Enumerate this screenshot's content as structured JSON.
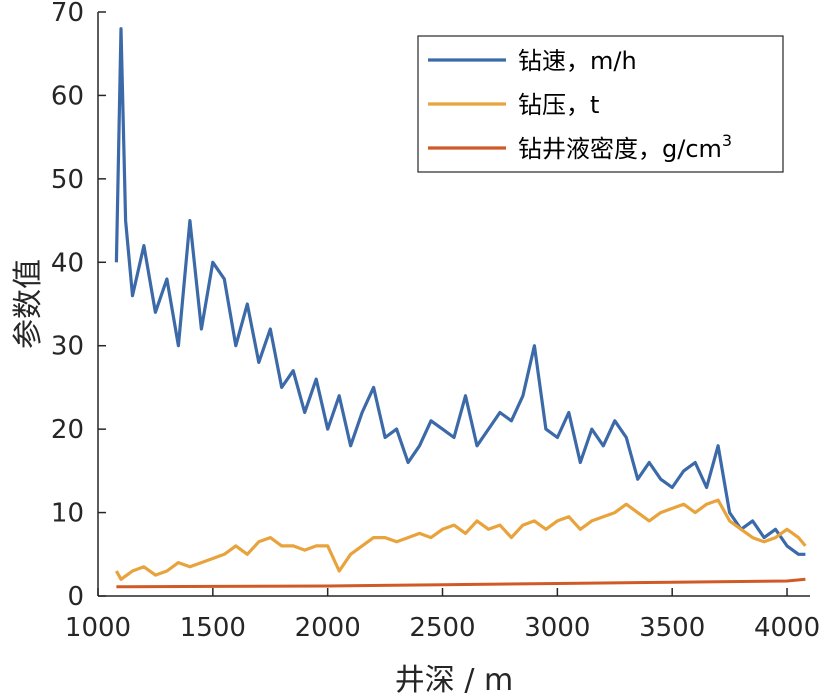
{
  "chart_data": {
    "type": "line",
    "xlabel": "井深 / m",
    "ylabel": "参数值",
    "xlim": [
      1000,
      4100
    ],
    "ylim": [
      0,
      70
    ],
    "xticks": [
      1000,
      1500,
      2000,
      2500,
      3000,
      3500,
      4000
    ],
    "yticks": [
      0,
      10,
      20,
      30,
      40,
      50,
      60,
      70
    ],
    "grid": false,
    "legend_position": "top-right",
    "series": [
      {
        "name": "钻速，m/h",
        "legend_main": "钻速，m/h",
        "legend_sup": "",
        "color": "#3c6aa8",
        "x": [
          1080,
          1100,
          1120,
          1150,
          1200,
          1250,
          1300,
          1350,
          1400,
          1450,
          1500,
          1550,
          1600,
          1650,
          1700,
          1750,
          1800,
          1850,
          1900,
          1950,
          2000,
          2050,
          2100,
          2150,
          2200,
          2250,
          2300,
          2350,
          2400,
          2450,
          2500,
          2550,
          2600,
          2650,
          2700,
          2750,
          2800,
          2850,
          2900,
          2950,
          3000,
          3050,
          3100,
          3150,
          3200,
          3250,
          3300,
          3350,
          3400,
          3450,
          3500,
          3550,
          3600,
          3650,
          3700,
          3750,
          3800,
          3850,
          3900,
          3950,
          4000,
          4050,
          4080
        ],
        "y": [
          40,
          68,
          45,
          36,
          42,
          34,
          38,
          30,
          45,
          32,
          40,
          38,
          30,
          35,
          28,
          32,
          25,
          27,
          22,
          26,
          20,
          24,
          18,
          22,
          25,
          19,
          20,
          16,
          18,
          21,
          20,
          19,
          24,
          18,
          20,
          22,
          21,
          24,
          30,
          20,
          19,
          22,
          16,
          20,
          18,
          21,
          19,
          14,
          16,
          14,
          13,
          15,
          16,
          13,
          18,
          10,
          8,
          9,
          7,
          8,
          6,
          5,
          5
        ]
      },
      {
        "name": "钻压，t",
        "legend_main": "钻压，t",
        "legend_sup": "",
        "color": "#e8a33c",
        "x": [
          1080,
          1100,
          1150,
          1200,
          1250,
          1300,
          1350,
          1400,
          1450,
          1500,
          1550,
          1600,
          1650,
          1700,
          1750,
          1800,
          1850,
          1900,
          1950,
          2000,
          2050,
          2100,
          2150,
          2200,
          2250,
          2300,
          2350,
          2400,
          2450,
          2500,
          2550,
          2600,
          2650,
          2700,
          2750,
          2800,
          2850,
          2900,
          2950,
          3000,
          3050,
          3100,
          3150,
          3200,
          3250,
          3300,
          3350,
          3400,
          3450,
          3500,
          3550,
          3600,
          3650,
          3700,
          3750,
          3800,
          3850,
          3900,
          3950,
          4000,
          4050,
          4080
        ],
        "y": [
          3,
          2,
          3,
          3.5,
          2.5,
          3,
          4,
          3.5,
          4,
          4.5,
          5,
          6,
          5,
          6.5,
          7,
          6,
          6,
          5.5,
          6,
          6,
          3,
          5,
          6,
          7,
          7,
          6.5,
          7,
          7.5,
          7,
          8,
          8.5,
          7.5,
          9,
          8,
          8.5,
          7,
          8.5,
          9,
          8,
          9,
          9.5,
          8,
          9,
          9.5,
          10,
          11,
          10,
          9,
          10,
          10.5,
          11,
          10,
          11,
          11.5,
          9,
          8,
          7,
          6.5,
          7,
          8,
          7,
          6
        ]
      },
      {
        "name": "钻井液密度，g/cm3",
        "legend_main": "钻井液密度，g/cm",
        "legend_sup": "3",
        "color": "#d05a27",
        "x": [
          1080,
          1500,
          2000,
          2500,
          3000,
          3500,
          4000,
          4080
        ],
        "y": [
          1.1,
          1.15,
          1.2,
          1.35,
          1.5,
          1.65,
          1.8,
          2.0
        ]
      }
    ]
  }
}
